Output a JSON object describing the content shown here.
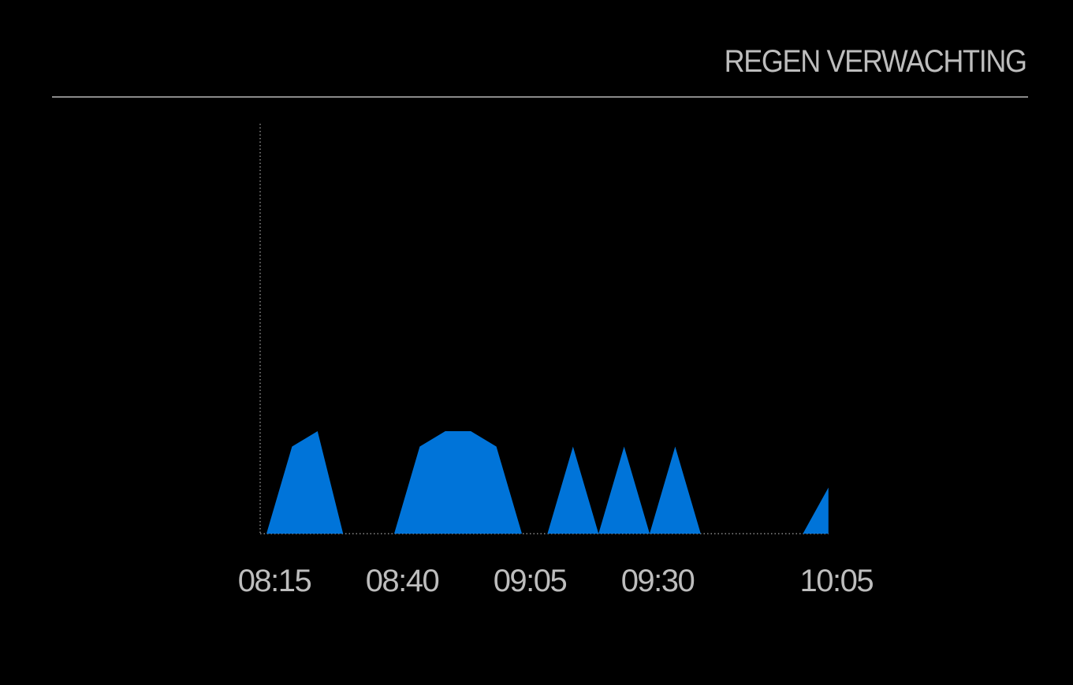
{
  "header": {
    "title": "REGEN VERWACHTING"
  },
  "chart_data": {
    "type": "area",
    "title": "",
    "xlabel": "",
    "ylabel": "",
    "x": [
      "08:15",
      "08:20",
      "08:25",
      "08:30",
      "08:35",
      "08:40",
      "08:45",
      "08:50",
      "08:55",
      "09:00",
      "09:05",
      "09:10",
      "09:15",
      "09:20",
      "09:25",
      "09:30",
      "09:35",
      "09:40",
      "09:45",
      "09:50",
      "09:55",
      "10:00",
      "10:05"
    ],
    "series": [
      {
        "values": [
          0,
          85,
          100,
          0,
          0,
          0,
          85,
          100,
          100,
          85,
          0,
          0,
          85,
          0,
          85,
          0,
          85,
          0,
          0,
          0,
          0,
          0,
          45
        ]
      }
    ],
    "tick_labels": [
      "08:15",
      "08:40",
      "09:05",
      "09:30",
      "10:05"
    ],
    "ylim": [
      0,
      400
    ],
    "grid": false,
    "area_color": "#0074d9",
    "axis_color": "#888888",
    "text_color": "#bdbdbd"
  }
}
